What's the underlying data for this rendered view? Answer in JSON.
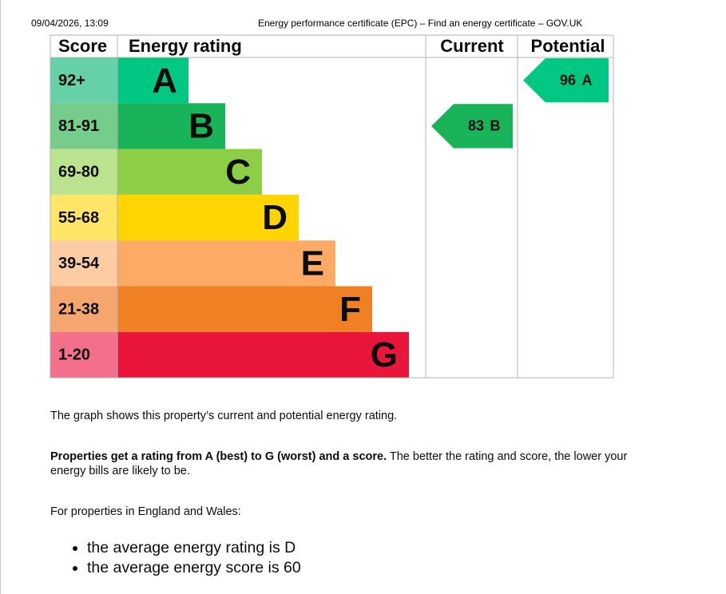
{
  "header": {
    "timestamp": "09/04/2026, 13:09",
    "page_title": "Energy performance certificate (EPC) – Find an energy certificate – GOV.UK"
  },
  "epc_chart": {
    "headers": [
      "Score",
      "Energy rating",
      "Current",
      "Potential"
    ],
    "bands": [
      {
        "score": "92+",
        "rating": "A",
        "color": "#00c781",
        "score_color": "#66d0a6"
      },
      {
        "score": "81-91",
        "rating": "B",
        "color": "#19b459",
        "score_color": "#75cc8b"
      },
      {
        "score": "69-80",
        "rating": "C",
        "color": "#8dce46",
        "score_color": "#bbe28f"
      },
      {
        "score": "55-68",
        "rating": "D",
        "color": "#ffd500",
        "score_color": "#ffe566"
      },
      {
        "score": "39-54",
        "rating": "E",
        "color": "#fcaa65",
        "score_color": "#fdcca3"
      },
      {
        "score": "21-38",
        "rating": "F",
        "color": "#ef8023",
        "score_color": "#f5a66f"
      },
      {
        "score": "1-20",
        "rating": "G",
        "color": "#e9153b",
        "score_color": "#f27089"
      }
    ],
    "current": {
      "value": 83,
      "rating": "B"
    },
    "potential": {
      "value": 96,
      "rating": "A"
    }
  },
  "text": {
    "intro": "The graph shows this property’s current and potential energy rating.",
    "rating_bold": "Properties get a rating from A (best) to G (worst) and a score.",
    "rating_rest": " The better the rating and score, the lower your energy bills are likely to be.",
    "england_wales": "For properties in England and Wales:",
    "bullets": [
      "the average energy rating is D",
      "the average energy score is 60"
    ]
  }
}
